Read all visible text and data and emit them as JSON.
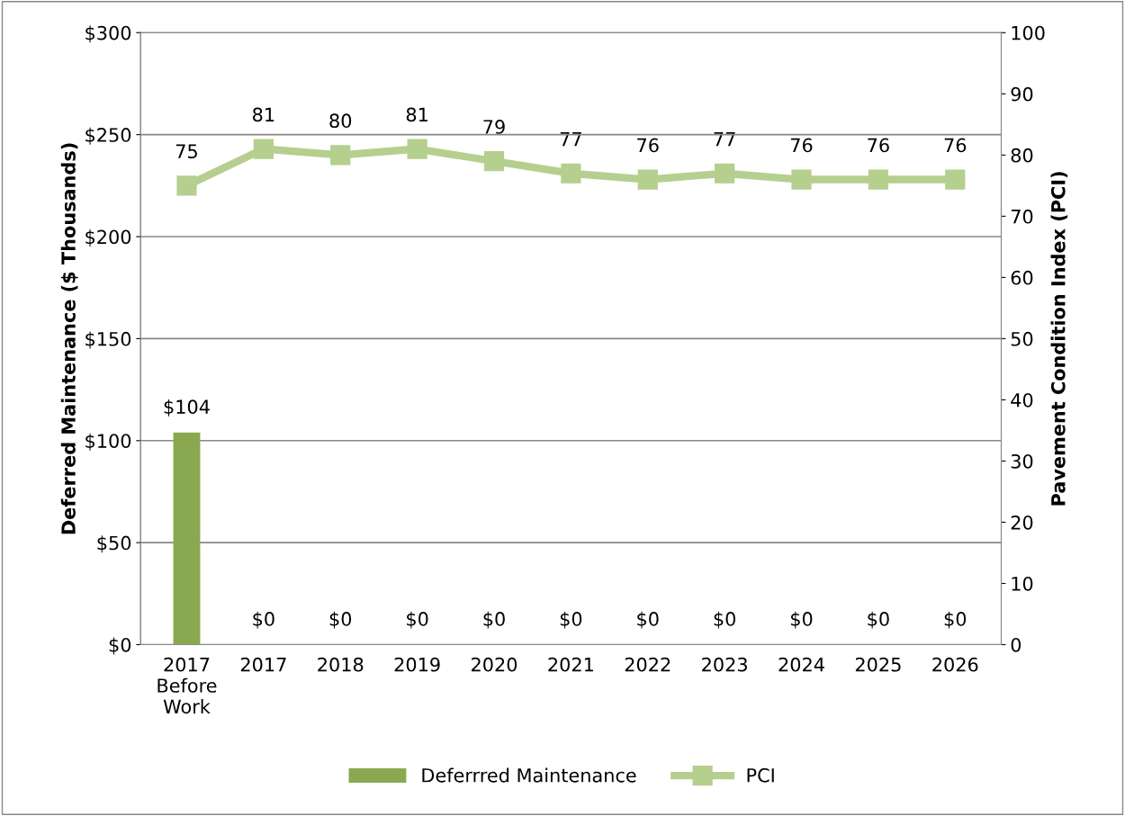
{
  "chart_data": {
    "type": "bar",
    "ylabel": "Deferred Maintenance ($ Thousands)",
    "y2label": "Pavement Condition Index (PCI)",
    "categories": [
      "2017 Before Work",
      "2017",
      "2018",
      "2019",
      "2020",
      "2021",
      "2022",
      "2023",
      "2024",
      "2025",
      "2026"
    ],
    "series": [
      {
        "name": "Deferrred Maintenance",
        "color": "#8aa84f",
        "values": [
          104,
          0,
          0,
          0,
          0,
          0,
          0,
          0,
          0,
          0,
          0
        ],
        "value_labels": [
          "$104",
          "$0",
          "$0",
          "$0",
          "$0",
          "$0",
          "$0",
          "$0",
          "$0",
          "$0",
          "$0"
        ]
      },
      {
        "name": "PCI",
        "type": "line",
        "axis": "y2",
        "color": "#b5cf8f",
        "marker": "square",
        "values": [
          75,
          81,
          80,
          81,
          79,
          77,
          76,
          77,
          76,
          76,
          76
        ],
        "value_labels": [
          "75",
          "81",
          "80",
          "81",
          "79",
          "77",
          "76",
          "77",
          "76",
          "76",
          "76"
        ]
      }
    ],
    "ylim": [
      0,
      300
    ],
    "yticks": [
      {
        "value": 0,
        "label": "$0"
      },
      {
        "value": 50,
        "label": "$50"
      },
      {
        "value": 100,
        "label": "$100"
      },
      {
        "value": 150,
        "label": "$150"
      },
      {
        "value": 200,
        "label": "$200"
      },
      {
        "value": 250,
        "label": "$250"
      },
      {
        "value": 300,
        "label": "$300"
      }
    ],
    "y2lim": [
      0,
      100
    ],
    "y2ticks": [
      0,
      10,
      20,
      30,
      40,
      50,
      60,
      70,
      80,
      90,
      100
    ],
    "grid": "y",
    "legend": "bottom"
  }
}
